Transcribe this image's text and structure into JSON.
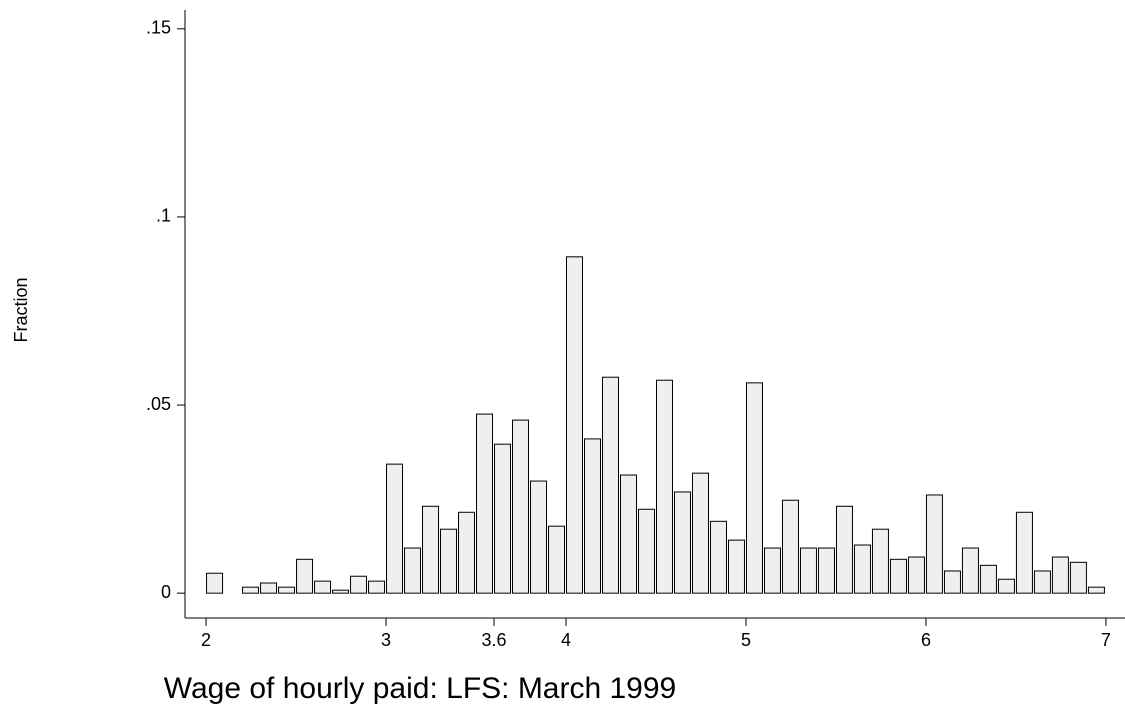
{
  "chart_data": {
    "type": "histogram",
    "xlabel": "Wage of hourly paid: LFS: March 1999",
    "ylabel": "Fraction",
    "bins": [
      2.0,
      2.1,
      2.2,
      2.3,
      2.4,
      2.5,
      2.6,
      2.7,
      2.8,
      2.9,
      3.0,
      3.1,
      3.2,
      3.3,
      3.4,
      3.5,
      3.6,
      3.7,
      3.8,
      3.9,
      4.0,
      4.1,
      4.2,
      4.3,
      4.4,
      4.5,
      4.6,
      4.7,
      4.8,
      4.9,
      5.0,
      5.1,
      5.2,
      5.3,
      5.4,
      5.5,
      5.6,
      5.7,
      5.8,
      5.9,
      6.0,
      6.1,
      6.2,
      6.3,
      6.4,
      6.5,
      6.6,
      6.7,
      6.8,
      6.9,
      7.0
    ],
    "values": [
      0.0053,
      0,
      0.0016,
      0.0027,
      0.0016,
      0.009,
      0.0032,
      0.0008,
      0.0045,
      0.0032,
      0.0343,
      0.012,
      0.0231,
      0.017,
      0.0215,
      0.0476,
      0.0396,
      0.046,
      0.0298,
      0.0178,
      0.0894,
      0.041,
      0.0574,
      0.0314,
      0.0223,
      0.0566,
      0.0269,
      0.0319,
      0.0191,
      0.0141,
      0.0559,
      0.012,
      0.0247,
      0.012,
      0.012,
      0.0231,
      0.0128,
      0.017,
      0.009,
      0.0096,
      0.0261,
      0.0059,
      0.012,
      0.0074,
      0.0037,
      0.0215,
      0.0059,
      0.0096,
      0.0082,
      0.0016
    ],
    "color": "#efefef",
    "xlim": [
      1.883,
      7.106
    ],
    "ylim": [
      -0.0066,
      0.155
    ],
    "xticks": [
      2,
      3,
      3.6,
      4,
      5,
      6,
      7
    ],
    "yticks": [
      0,
      {
        "value": 0.05,
        "label": ".05"
      },
      {
        "value": 0.1,
        "label": ".1"
      },
      {
        "value": 0.15,
        "label": ".15"
      }
    ]
  }
}
